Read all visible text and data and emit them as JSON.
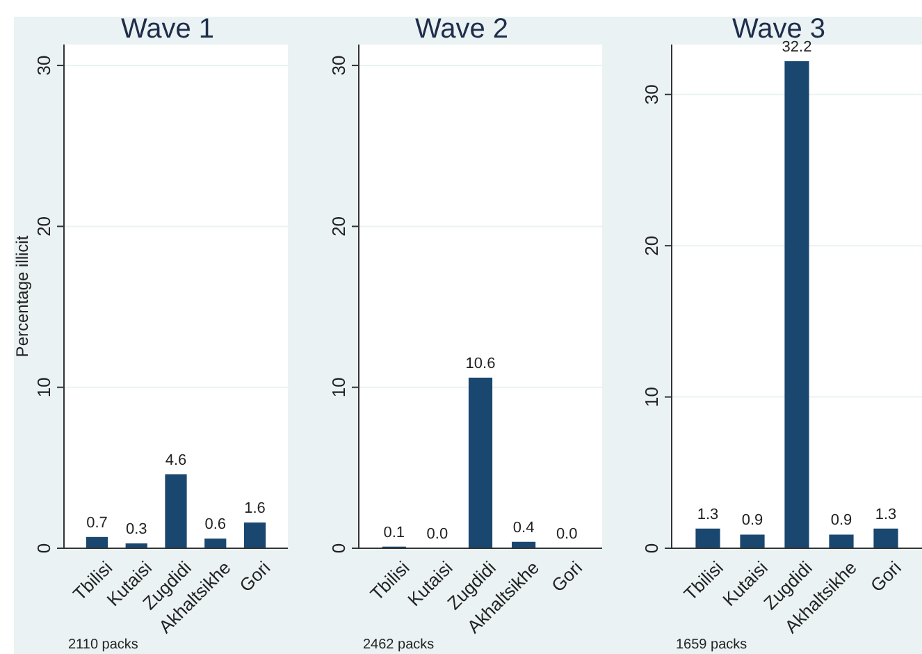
{
  "chart_data": [
    {
      "type": "bar",
      "title": "Wave 1",
      "ylabel": "Percentage illicit",
      "categories": [
        "Tbilisi",
        "Kutaisi",
        "Zugdidi",
        "Akhaltsikhe",
        "Gori"
      ],
      "values": [
        0.7,
        0.3,
        4.6,
        0.6,
        1.6
      ],
      "value_labels": [
        "0.7",
        "0.3",
        "4.6",
        "0.6",
        "1.6"
      ],
      "color": "#1a476f",
      "ylim": [
        0,
        31.3
      ],
      "yticks": [
        0,
        10,
        20,
        30
      ],
      "grid": "y",
      "annotations": [
        "2110 packs"
      ]
    },
    {
      "type": "bar",
      "title": "Wave 2",
      "categories": [
        "Tbilisi",
        "Kutaisi",
        "Zugdidi",
        "Akhaltsikhe",
        "Gori"
      ],
      "values": [
        0.1,
        0.0,
        10.6,
        0.4,
        0.0
      ],
      "value_labels": [
        "0.1",
        "0.0",
        "10.6",
        "0.4",
        "0.0"
      ],
      "color": "#1a476f",
      "ylim": [
        0,
        31.3
      ],
      "yticks": [
        0,
        10,
        20,
        30
      ],
      "grid": "y",
      "annotations": [
        "2462 packs"
      ]
    },
    {
      "type": "bar",
      "title": "Wave 3",
      "categories": [
        "Tbilisi",
        "Kutaisi",
        "Zugdidi",
        "Akhaltsikhe",
        "Gori"
      ],
      "values": [
        1.3,
        0.9,
        32.2,
        0.9,
        1.3
      ],
      "value_labels": [
        "1.3",
        "0.9",
        "32.2",
        "0.9",
        "1.3"
      ],
      "color": "#1a476f",
      "ylim": [
        0,
        33.3
      ],
      "yticks": [
        0,
        10,
        20,
        30
      ],
      "grid": "y",
      "annotations": [
        "1659 packs"
      ]
    }
  ]
}
